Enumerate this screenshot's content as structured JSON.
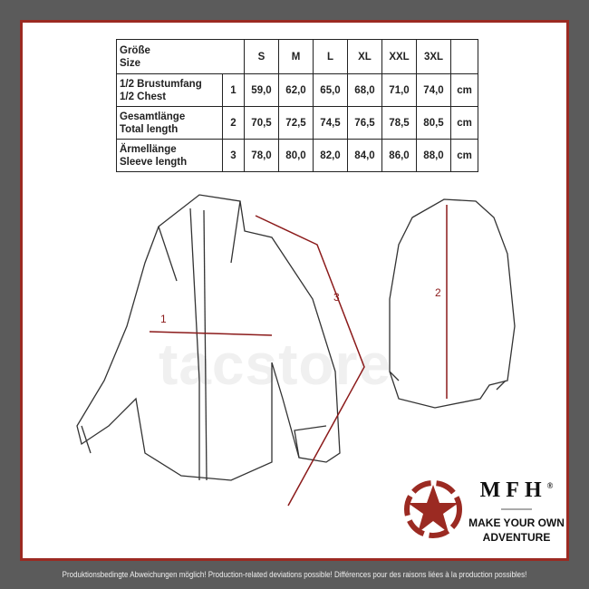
{
  "table": {
    "header": {
      "label1": "Größe",
      "label2": "Size",
      "sizes": [
        "S",
        "M",
        "L",
        "XL",
        "XXL",
        "3XL"
      ]
    },
    "rows": [
      {
        "de": "1/2 Brustumfang",
        "en": "1/2 Chest",
        "num": "1",
        "values": [
          "59,0",
          "62,0",
          "65,0",
          "68,0",
          "71,0",
          "74,0"
        ],
        "unit": "cm"
      },
      {
        "de": "Gesamtlänge",
        "en": "Total length",
        "num": "2",
        "values": [
          "70,5",
          "72,5",
          "74,5",
          "76,5",
          "78,5",
          "80,5"
        ],
        "unit": "cm"
      },
      {
        "de": "Ärmellänge",
        "en": "Sleeve length",
        "num": "3",
        "values": [
          "78,0",
          "80,0",
          "82,0",
          "84,0",
          "86,0",
          "88,0"
        ],
        "unit": "cm"
      }
    ]
  },
  "diagram": {
    "marker1": "1",
    "marker2": "2",
    "marker3": "3",
    "watermark": "tacstore"
  },
  "logo": {
    "brand": "MFH",
    "registered": "®",
    "slogan1": "MAKE YOUR OWN",
    "slogan2": "ADVENTURE"
  },
  "footer": "Produktionsbedingte Abweichungen möglich! Production-related deviations possible! Différences pour des raisons liées à la production possibles!",
  "colors": {
    "frame": "#9b2a22",
    "background": "#5b5b5b",
    "accent": "#8b1a1a"
  }
}
